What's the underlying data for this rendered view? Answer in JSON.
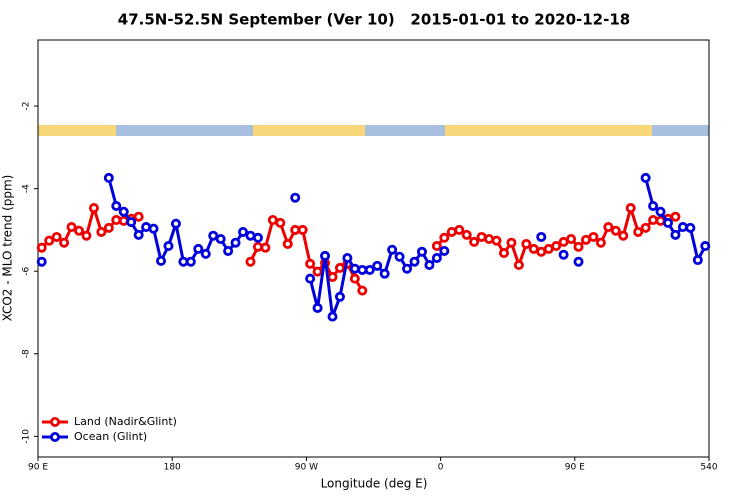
{
  "chart_data": {
    "type": "line",
    "title": "47.5N-52.5N September (Ver 10)   2015-01-01 to 2020-12-18",
    "xlabel": "Longitude (deg E)",
    "ylabel": "XCO2 - MLO trend (ppm)",
    "xlim": [
      90,
      540
    ],
    "xticks": [
      {
        "value": 90,
        "label": "90 E"
      },
      180,
      {
        "value": 270,
        "label": "90 W"
      },
      {
        "value": 360,
        "label": "0"
      },
      {
        "value": 450,
        "label": "90 E"
      },
      540
    ],
    "ylim": [
      -10.5,
      -0.4
    ],
    "yticks": [
      -2,
      -4,
      -6,
      -8,
      -10
    ],
    "legend": "bottom-left",
    "x": [
      92.5,
      97.5,
      102.5,
      107.5,
      112.5,
      117.5,
      122.5,
      127.5,
      132.5,
      137.5,
      142.5,
      147.5,
      152.5,
      157.5,
      162.5,
      167.5,
      172.5,
      177.5,
      182.5,
      187.5,
      192.5,
      197.5,
      202.5,
      207.5,
      212.5,
      217.5,
      222.5,
      227.5,
      232.5,
      237.5,
      242.5,
      247.5,
      252.5,
      257.5,
      262.5,
      267.5,
      272.5,
      277.5,
      282.5,
      287.5,
      292.5,
      297.5,
      302.5,
      307.5,
      312.5,
      317.5,
      322.5,
      327.5,
      332.5,
      337.5,
      342.5,
      347.5,
      352.5,
      357.5,
      362.5,
      367.5,
      372.5,
      377.5,
      382.5,
      387.5,
      392.5,
      397.5,
      402.5,
      407.5,
      412.5,
      417.5,
      422.5,
      427.5,
      432.5,
      437.5,
      442.5,
      447.5,
      452.5,
      457.5,
      462.5,
      467.5,
      472.5,
      477.5,
      482.5,
      487.5,
      492.5,
      497.5,
      502.5,
      507.5,
      512.5,
      517.5,
      522.5,
      527.5,
      532.5,
      537.5
    ],
    "series": [
      {
        "name": "Land (Nadir&Glint)",
        "color": "#ee0000",
        "values": [
          -5.43,
          -5.26,
          -5.17,
          -5.31,
          -4.93,
          -5.02,
          -5.14,
          -4.47,
          -5.05,
          -4.95,
          -4.76,
          -4.78,
          -4.73,
          -4.68,
          null,
          null,
          null,
          null,
          null,
          null,
          null,
          null,
          null,
          null,
          null,
          null,
          null,
          null,
          -5.77,
          -5.41,
          -5.43,
          -4.76,
          -4.83,
          -5.34,
          -5.0,
          -5.0,
          -5.82,
          -6.01,
          -5.8,
          -6.14,
          -5.92,
          -5.82,
          -6.18,
          -6.47,
          null,
          null,
          null,
          null,
          null,
          null,
          null,
          null,
          null,
          -5.39,
          -5.19,
          -5.05,
          -5.0,
          -5.12,
          -5.29,
          -5.17,
          -5.22,
          -5.26,
          -5.56,
          -5.31,
          -5.85,
          -5.34,
          -5.46,
          -5.53,
          -5.46,
          -5.39,
          -5.29,
          -5.22,
          -5.41,
          -5.24,
          -5.17,
          -5.31,
          -4.93,
          -5.02,
          -5.14,
          -4.47,
          -5.05,
          -4.95,
          -4.76,
          -4.78,
          -4.73,
          -4.68,
          null,
          null,
          null,
          null
        ]
      },
      {
        "name": "Ocean (Glint)",
        "color": "#0000dd",
        "values": [
          -5.77,
          null,
          null,
          null,
          null,
          null,
          null,
          null,
          null,
          -3.74,
          -4.42,
          -4.56,
          -4.81,
          -5.12,
          -4.93,
          -4.97,
          -5.75,
          -5.39,
          -4.85,
          -5.77,
          -5.77,
          -5.46,
          -5.58,
          -5.14,
          -5.22,
          -5.51,
          -5.31,
          -5.05,
          -5.14,
          -5.19,
          null,
          null,
          null,
          null,
          -4.22,
          null,
          -6.18,
          -6.89,
          -5.63,
          -7.1,
          -6.62,
          -5.68,
          -5.94,
          -5.97,
          -5.97,
          -5.87,
          -6.06,
          -5.48,
          -5.65,
          -5.94,
          -5.77,
          -5.53,
          -5.85,
          -5.68,
          -5.51,
          null,
          null,
          null,
          null,
          null,
          null,
          null,
          null,
          null,
          null,
          null,
          null,
          -5.17,
          null,
          null,
          -5.6,
          null,
          -5.77,
          null,
          null,
          null,
          null,
          null,
          null,
          null,
          null,
          -3.74,
          -4.42,
          -4.56,
          -4.83,
          -5.12,
          -4.93,
          -4.95,
          -5.73,
          -5.39
        ]
      }
    ]
  }
}
